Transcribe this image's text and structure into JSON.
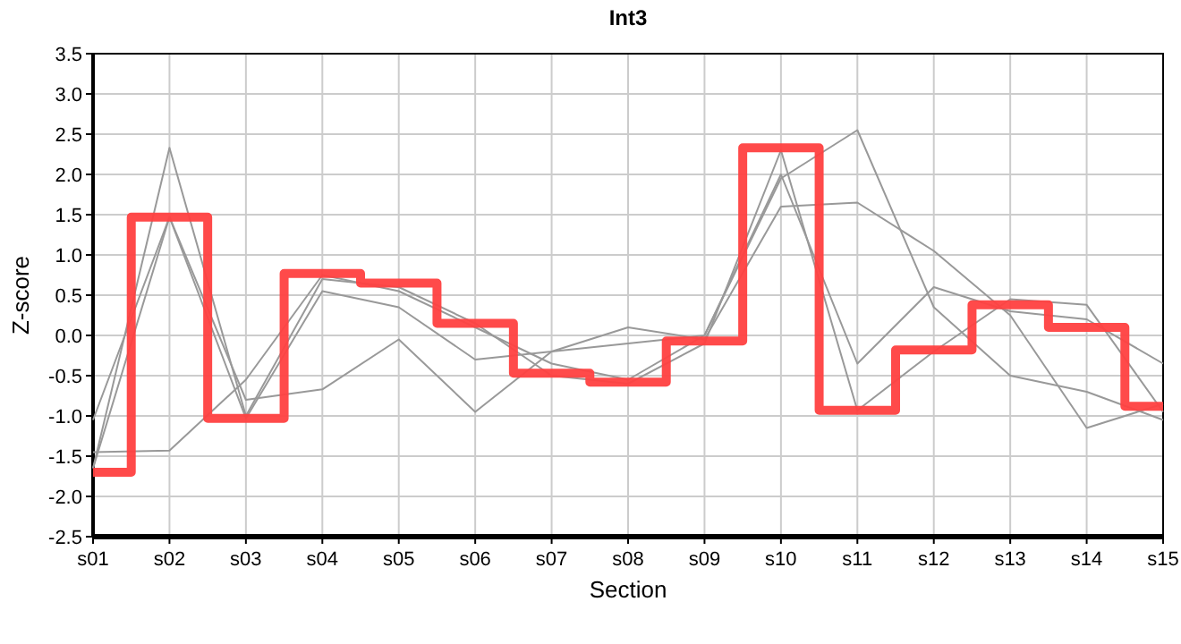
{
  "chart_data": {
    "type": "line",
    "title": "Int3",
    "xlabel": "Section",
    "ylabel": "Z-score",
    "categories": [
      "s01",
      "s02",
      "s03",
      "s04",
      "s05",
      "s06",
      "s07",
      "s08",
      "s09",
      "s10",
      "s11",
      "s12",
      "s13",
      "s14",
      "s15"
    ],
    "ylim": [
      -2.5,
      3.5
    ],
    "yticks": [
      {
        "value": -2.5,
        "label": "-2.5"
      },
      {
        "value": -2,
        "label": "-2.0"
      },
      {
        "value": -1.5,
        "label": "-1.5"
      },
      {
        "value": -1,
        "label": "-1.0"
      },
      {
        "value": -0.5,
        "label": "-0.5"
      },
      {
        "value": 0,
        "label": "0.0"
      },
      {
        "value": 0.5,
        "label": "0.5"
      },
      {
        "value": 1,
        "label": "1.0"
      },
      {
        "value": 1.5,
        "label": "1.5"
      },
      {
        "value": 2,
        "label": "2.0"
      },
      {
        "value": 2.5,
        "label": "2.5"
      },
      {
        "value": 3,
        "label": "3.0"
      },
      {
        "value": 3.5,
        "label": "3.5"
      }
    ],
    "grid": true,
    "marker": "none",
    "line_style": "solid",
    "series": [
      {
        "color": "#999999",
        "values": [
          -1.65,
          2.33,
          -1.0,
          0.7,
          0.6,
          0.15,
          -0.5,
          -0.6,
          -0.1,
          2.3,
          -0.93,
          -0.2,
          0.45,
          0.38,
          -0.95
        ]
      },
      {
        "color": "#999999",
        "values": [
          -1.45,
          -1.43,
          -0.55,
          0.75,
          0.55,
          0.1,
          -0.35,
          -0.55,
          0.0,
          2.0,
          -0.35,
          0.6,
          0.3,
          0.2,
          -0.35
        ]
      },
      {
        "color": "#999999",
        "values": [
          -1.05,
          1.47,
          -0.8,
          -0.67,
          -0.05,
          -0.95,
          -0.2,
          -0.1,
          0.0,
          1.95,
          2.55,
          0.35,
          -0.5,
          -0.7,
          -1.05
        ]
      },
      {
        "color": "#999999",
        "values": [
          -1.65,
          1.47,
          -1.03,
          0.55,
          0.35,
          -0.3,
          -0.2,
          0.1,
          -0.05,
          1.6,
          1.65,
          1.05,
          0.25,
          -1.15,
          -0.85
        ]
      },
      {
        "type": "step",
        "color": "#ff4040",
        "values": [
          -1.7,
          1.47,
          -1.03,
          0.77,
          0.65,
          0.15,
          -0.47,
          -0.58,
          -0.07,
          2.33,
          -0.93,
          -0.18,
          0.38,
          0.1,
          -0.88
        ]
      }
    ]
  }
}
